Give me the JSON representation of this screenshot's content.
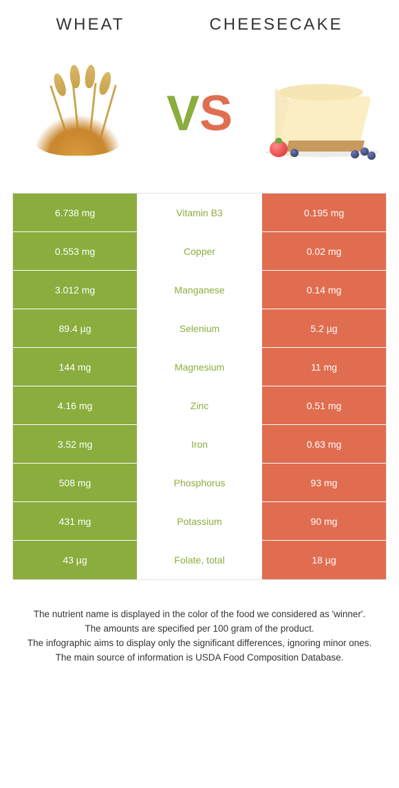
{
  "header": {
    "left_title": "Wheat",
    "right_title": "Cheesecake",
    "vs_v": "V",
    "vs_s": "S"
  },
  "colors": {
    "green": "#8aad3e",
    "orange": "#e06d4f",
    "row_border": "#ffffff",
    "table_border": "#e2e2e2",
    "text": "#333333",
    "background": "#ffffff"
  },
  "table": {
    "left_color": "#8aad3e",
    "right_color": "#e06d4f",
    "rows": [
      {
        "left": "6.738 mg",
        "label": "Vitamin B3",
        "right": "0.195 mg",
        "winner": "left"
      },
      {
        "left": "0.553 mg",
        "label": "Copper",
        "right": "0.02 mg",
        "winner": "left"
      },
      {
        "left": "3.012 mg",
        "label": "Manganese",
        "right": "0.14 mg",
        "winner": "left"
      },
      {
        "left": "89.4 µg",
        "label": "Selenium",
        "right": "5.2 µg",
        "winner": "left"
      },
      {
        "left": "144 mg",
        "label": "Magnesium",
        "right": "11 mg",
        "winner": "left"
      },
      {
        "left": "4.16 mg",
        "label": "Zinc",
        "right": "0.51 mg",
        "winner": "left"
      },
      {
        "left": "3.52 mg",
        "label": "Iron",
        "right": "0.63 mg",
        "winner": "left"
      },
      {
        "left": "508 mg",
        "label": "Phosphorus",
        "right": "93 mg",
        "winner": "left"
      },
      {
        "left": "431 mg",
        "label": "Potassium",
        "right": "90 mg",
        "winner": "left"
      },
      {
        "left": "43 µg",
        "label": "Folate, total",
        "right": "18 µg",
        "winner": "left"
      }
    ]
  },
  "footer": {
    "line1": "The nutrient name is displayed in the color of the food we considered as 'winner'.",
    "line2": "The amounts are specified per 100 gram of the product.",
    "line3": "The infographic aims to display only the significant differences, ignoring minor ones.",
    "line4": "The main source of information is USDA Food Composition Database."
  }
}
